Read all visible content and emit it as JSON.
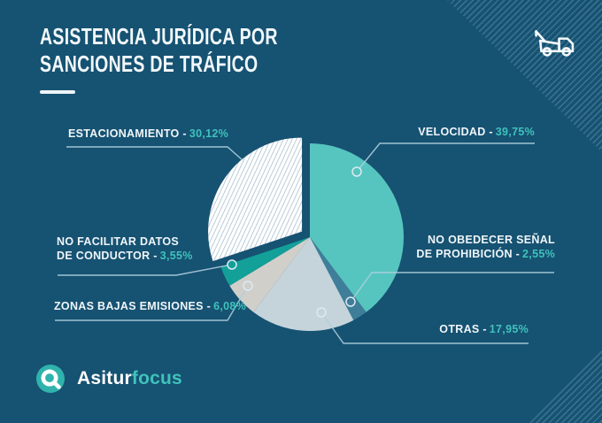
{
  "title": {
    "line1": "ASISTENCIA JURÍDICA POR",
    "line2": "SANCIONES DE TRÁFICO"
  },
  "brand": {
    "primary": "Asitur",
    "secondary": "focus"
  },
  "icons": {
    "header_icon": "tow-truck-icon",
    "brand_mark": "magnifier-icon"
  },
  "colors": {
    "background": "#165272",
    "accent_teal": "#3fc2bb",
    "text": "#f0f6f9",
    "leader_line": "#aecfdd",
    "hatch_stripe": "#a3bcca"
  },
  "callouts": {
    "estacionamiento": {
      "line1": "ESTACIONAMIENTO -",
      "pct": "30,12%"
    },
    "velocidad": {
      "line1": "VELOCIDAD -",
      "pct": "39,75%"
    },
    "no_obedecer": {
      "line1": "NO OBEDECER SEÑAL",
      "line2": "DE PROHIBICIÓN -",
      "pct": "2,55%"
    },
    "otras": {
      "line1": "OTRAS -",
      "pct": "17,95%"
    },
    "zonas_bajas": {
      "line1": "ZONAS BAJAS EMISIONES -",
      "pct": "6,08%"
    },
    "no_facilitar": {
      "line1": "NO FACILITAR DATOS",
      "line2": "DE CONDUCTOR -",
      "pct": "3,55%"
    }
  },
  "chart_data": {
    "type": "pie",
    "title": "Asistencia jurídica por sanciones de tráfico",
    "unit": "%",
    "direction": "clockwise",
    "start_angle_deg": 0,
    "legend_position": "callout-labels",
    "slices": [
      {
        "id": "velocidad",
        "label": "VELOCIDAD",
        "value": 39.75,
        "display": "39,75%",
        "color": "#56c5bf"
      },
      {
        "id": "no-obedecer-senal-de-prohibicion",
        "label": "NO OBEDECER SEÑAL DE PROHIBICIÓN",
        "value": 2.55,
        "display": "2,55%",
        "color": "#3f7e98"
      },
      {
        "id": "otras",
        "label": "OTRAS",
        "value": 17.95,
        "display": "17,95%",
        "color": "#c5d4db"
      },
      {
        "id": "zonas-bajas-emisiones",
        "label": "ZONAS BAJAS EMISIONES",
        "value": 6.08,
        "display": "6,08%",
        "color": "#d1cfca"
      },
      {
        "id": "no-facilitar-datos-de-conductor",
        "label": "NO FACILITAR DATOS DE CONDUCTOR",
        "value": 3.55,
        "display": "3,55%",
        "color": "#12a099"
      },
      {
        "id": "estacionamiento",
        "label": "ESTACIONAMIENTO",
        "value": 30.12,
        "display": "30,12%",
        "color": "hatched",
        "exploded": true
      }
    ]
  }
}
